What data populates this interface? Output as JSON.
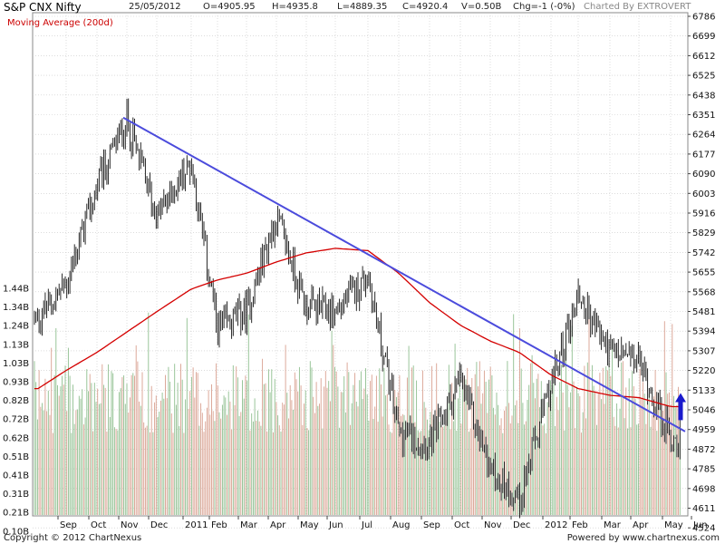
{
  "header": {
    "title": "S&P CNX Nifty",
    "date": "25/05/2012",
    "open": "O=4905.95",
    "high": "H=4935.8",
    "low": "L=4889.35",
    "close": "C=4920.4",
    "volume": "V=0.50B",
    "change": "Chg=-1 (-0%)",
    "credit": "Charted By EXTROVERT"
  },
  "legend": {
    "moving_average": "Moving Average (200d)"
  },
  "footer": {
    "copyright": "Copyright © 2012 ChartNexus",
    "powered": "Powered by www.chartnexus.com"
  },
  "colors": {
    "up_volume": "#8fbf8f",
    "down_volume": "#d9a090",
    "price_bars": "#111111",
    "moving_average": "#d40000",
    "trendline": "#4b4bdc",
    "arrow": "#1a1acc",
    "grid": "#c8c8c8"
  },
  "chart_data": {
    "type": "ohlc",
    "price_axis": {
      "side": "right",
      "ticks": [
        "6786",
        "6699",
        "6612",
        "6525",
        "6438",
        "6351",
        "6264",
        "6177",
        "6090",
        "6003",
        "5916",
        "5829",
        "5742",
        "5655",
        "5568",
        "5481",
        "5394",
        "5307",
        "5220",
        "5133",
        "5046",
        "4959",
        "4872",
        "4785",
        "4698",
        "4611",
        "4524"
      ],
      "range": [
        4437,
        6786
      ]
    },
    "volume_axis": {
      "side": "left",
      "ticks": [
        "1.44B",
        "1.34B",
        "1.24B",
        "1.13B",
        "1.03B",
        "0.93B",
        "0.82B",
        "0.72B",
        "0.62B",
        "0.51B",
        "0.41B",
        "0.31B",
        "0.21B",
        "0.10B"
      ],
      "range": [
        0,
        1.54
      ]
    },
    "x_axis": {
      "labels": [
        "Sep",
        "Oct",
        "Nov",
        "Dec",
        "2011",
        "Feb",
        "Mar",
        "Apr",
        "May",
        "Jun",
        "Jul",
        "Aug",
        "Sep",
        "Oct",
        "Nov",
        "Dec",
        "2012",
        "Feb",
        "Mar",
        "Apr",
        "May",
        "Jun"
      ]
    },
    "price_series": {
      "name": "S&P CNX Nifty",
      "type": "ohlc",
      "monthly_path": [
        [
          "Aug 2010",
          5450
        ],
        [
          "Sep 2010",
          5600
        ],
        [
          "Oct 2010",
          6030
        ],
        [
          "Nov 2010",
          6330
        ],
        [
          "Dec 2010",
          5900
        ],
        [
          "Jan 2011",
          6140
        ],
        [
          "Feb 2011",
          5400
        ],
        [
          "Mar 2011",
          5480
        ],
        [
          "Apr 2011",
          5900
        ],
        [
          "May 2011",
          5500
        ],
        [
          "Jun 2011",
          5480
        ],
        [
          "Jul 2011",
          5640
        ],
        [
          "Aug 2011",
          4950
        ],
        [
          "Sep 2011",
          4900
        ],
        [
          "Oct 2011",
          5180
        ],
        [
          "Nov 2011",
          4780
        ],
        [
          "Dec 2011",
          4650
        ],
        [
          "Jan 2012",
          5150
        ],
        [
          "Feb 2012",
          5560
        ],
        [
          "Mar 2012",
          5300
        ],
        [
          "Apr 2012",
          5260
        ],
        [
          "May 2012",
          4920
        ]
      ],
      "high": 6338,
      "low": 4531,
      "last_close": 4920.4
    },
    "moving_average": {
      "name": "Moving Average (200d)",
      "monthly_path": [
        [
          "Aug 2010",
          5140
        ],
        [
          "Sep 2010",
          5220
        ],
        [
          "Oct 2010",
          5300
        ],
        [
          "Nov 2010",
          5390
        ],
        [
          "Dec 2010",
          5480
        ],
        [
          "Jan 2011",
          5580
        ],
        [
          "Feb 2011",
          5620
        ],
        [
          "Mar 2011",
          5650
        ],
        [
          "Apr 2011",
          5700
        ],
        [
          "May 2011",
          5740
        ],
        [
          "Jun 2011",
          5760
        ],
        [
          "Jul 2011",
          5750
        ],
        [
          "Aug 2011",
          5650
        ],
        [
          "Sep 2011",
          5520
        ],
        [
          "Oct 2011",
          5420
        ],
        [
          "Nov 2011",
          5350
        ],
        [
          "Dec 2011",
          5300
        ],
        [
          "Jan 2012",
          5200
        ],
        [
          "Feb 2012",
          5140
        ],
        [
          "Mar 2012",
          5110
        ],
        [
          "Apr 2012",
          5100
        ],
        [
          "May 2012",
          5060
        ]
      ]
    },
    "trendline": {
      "start": [
        "Nov 2010",
        6338
      ],
      "end": [
        "end of May 2012",
        4950
      ]
    },
    "volume_series": {
      "name": "Volume",
      "typical_range": [
        0.45,
        0.85
      ],
      "peak": 1.2
    },
    "annotations": [
      {
        "type": "arrow",
        "direction": "up",
        "date": "late May 2012",
        "from": 5000,
        "to": 5120
      }
    ],
    "grid": true,
    "legend_position": "top-left"
  }
}
